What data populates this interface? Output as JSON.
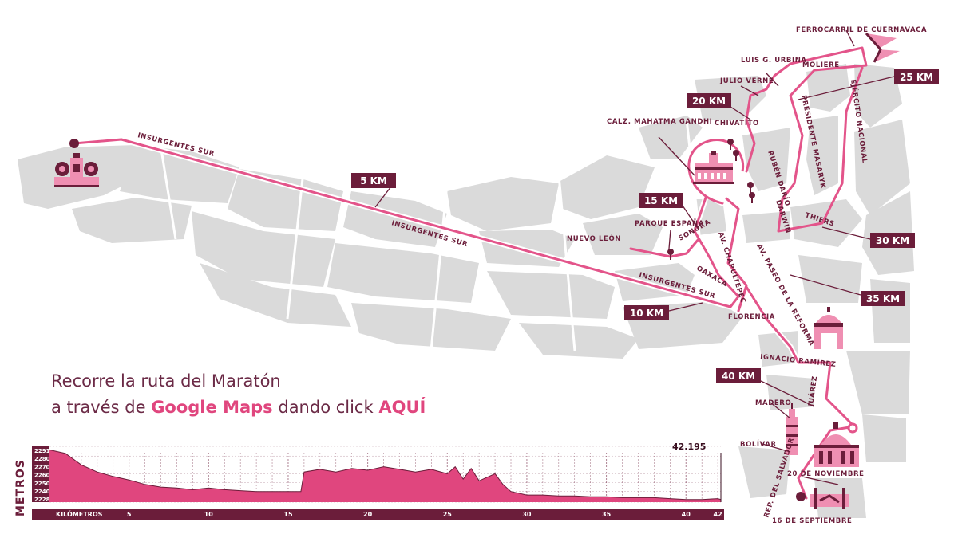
{
  "cta": {
    "line1": "Recorre la ruta del Maratón",
    "line2_a": "a través de",
    "line2_link": "Google Maps",
    "line2_b": "dando click",
    "line2_link2": "AQUÍ"
  },
  "km_markers": [
    "5 KM",
    "10 KM",
    "15 KM",
    "20 KM",
    "25 KM",
    "30 KM",
    "35 KM",
    "40 KM"
  ],
  "streets": {
    "insurgentes_1": "INSURGENTES SUR",
    "insurgentes_2": "INSURGENTES SUR",
    "insurgentes_3": "INSURGENTES SUR",
    "nuevo_leon": "NUEVO LEÓN",
    "parque_espana": "PARQUE ESPAÑA",
    "sonora": "SONORA",
    "oaxaca": "OAXACA",
    "chapultepec": "AV. CHAPULTEPEC",
    "florencia": "FLORENCIA",
    "reforma": "AV. PASEO DE LA REFORMA",
    "gandhi": "CALZ. MAHATMA GANDHI",
    "chivatito": "CHIVATITO",
    "julio_verne": "JULIO VERNE",
    "urbina": "LUIS G. URBINA",
    "moliere": "MOLIERE",
    "ferrocarril": "FERROCARRIL DE CUERNAVACA",
    "ejercito": "EJÉRCITO NACIONAL",
    "masaryk": "PRESIDENTE MASARYK",
    "ruben_dario": "RUBÉN DARÍO",
    "darwin": "DARWIN",
    "thiers": "THIERS",
    "ignacio_ramirez": "IGNACIO RAMÍREZ",
    "juarez": "JUÁREZ",
    "madero": "MADERO",
    "bolivar": "BOLÍVAR",
    "noviembre": "20 DE NOVIEMBRE",
    "salvador": "REP. DEL SALVADOR",
    "septiembre": "16 DE SEPTIEMBRE"
  },
  "profile": {
    "ylabel": "METROS",
    "total_label": "42.195",
    "x_title": "KILÓMETROS",
    "x_ticks": [
      5,
      10,
      15,
      20,
      25,
      30,
      35,
      40,
      42
    ],
    "y_ticks": [
      2291,
      2280,
      2270,
      2260,
      2250,
      2240,
      2228
    ]
  },
  "colors": {
    "route": "#e3548a",
    "maroon": "#6b1d3a",
    "block": "#dadada",
    "profile_fill": "#e0467e"
  },
  "chart_data": {
    "type": "area",
    "xlabel": "KILÓMETROS",
    "ylabel": "METROS",
    "xlim": [
      0,
      42.195
    ],
    "ylim": [
      2228,
      2291
    ],
    "x": [
      0,
      1,
      2,
      3,
      4,
      5,
      6,
      7,
      8,
      9,
      10,
      11,
      12,
      13,
      14,
      15,
      15.8,
      16,
      17,
      18,
      19,
      20,
      21,
      22,
      23,
      24,
      25,
      25.5,
      26,
      26.5,
      27,
      28,
      28.5,
      29,
      30,
      31,
      32,
      33,
      34,
      35,
      36,
      37,
      38,
      39,
      40,
      41,
      42,
      42.195
    ],
    "values": [
      2287,
      2283,
      2270,
      2262,
      2257,
      2253,
      2248,
      2245,
      2244,
      2242,
      2244,
      2242,
      2241,
      2240,
      2240,
      2240,
      2240,
      2262,
      2265,
      2262,
      2266,
      2264,
      2268,
      2265,
      2262,
      2265,
      2260,
      2268,
      2254,
      2266,
      2252,
      2260,
      2248,
      2240,
      2236,
      2236,
      2235,
      2235,
      2234,
      2234,
      2233,
      2233,
      2233,
      2232,
      2231,
      2231,
      2232,
      2231
    ]
  }
}
